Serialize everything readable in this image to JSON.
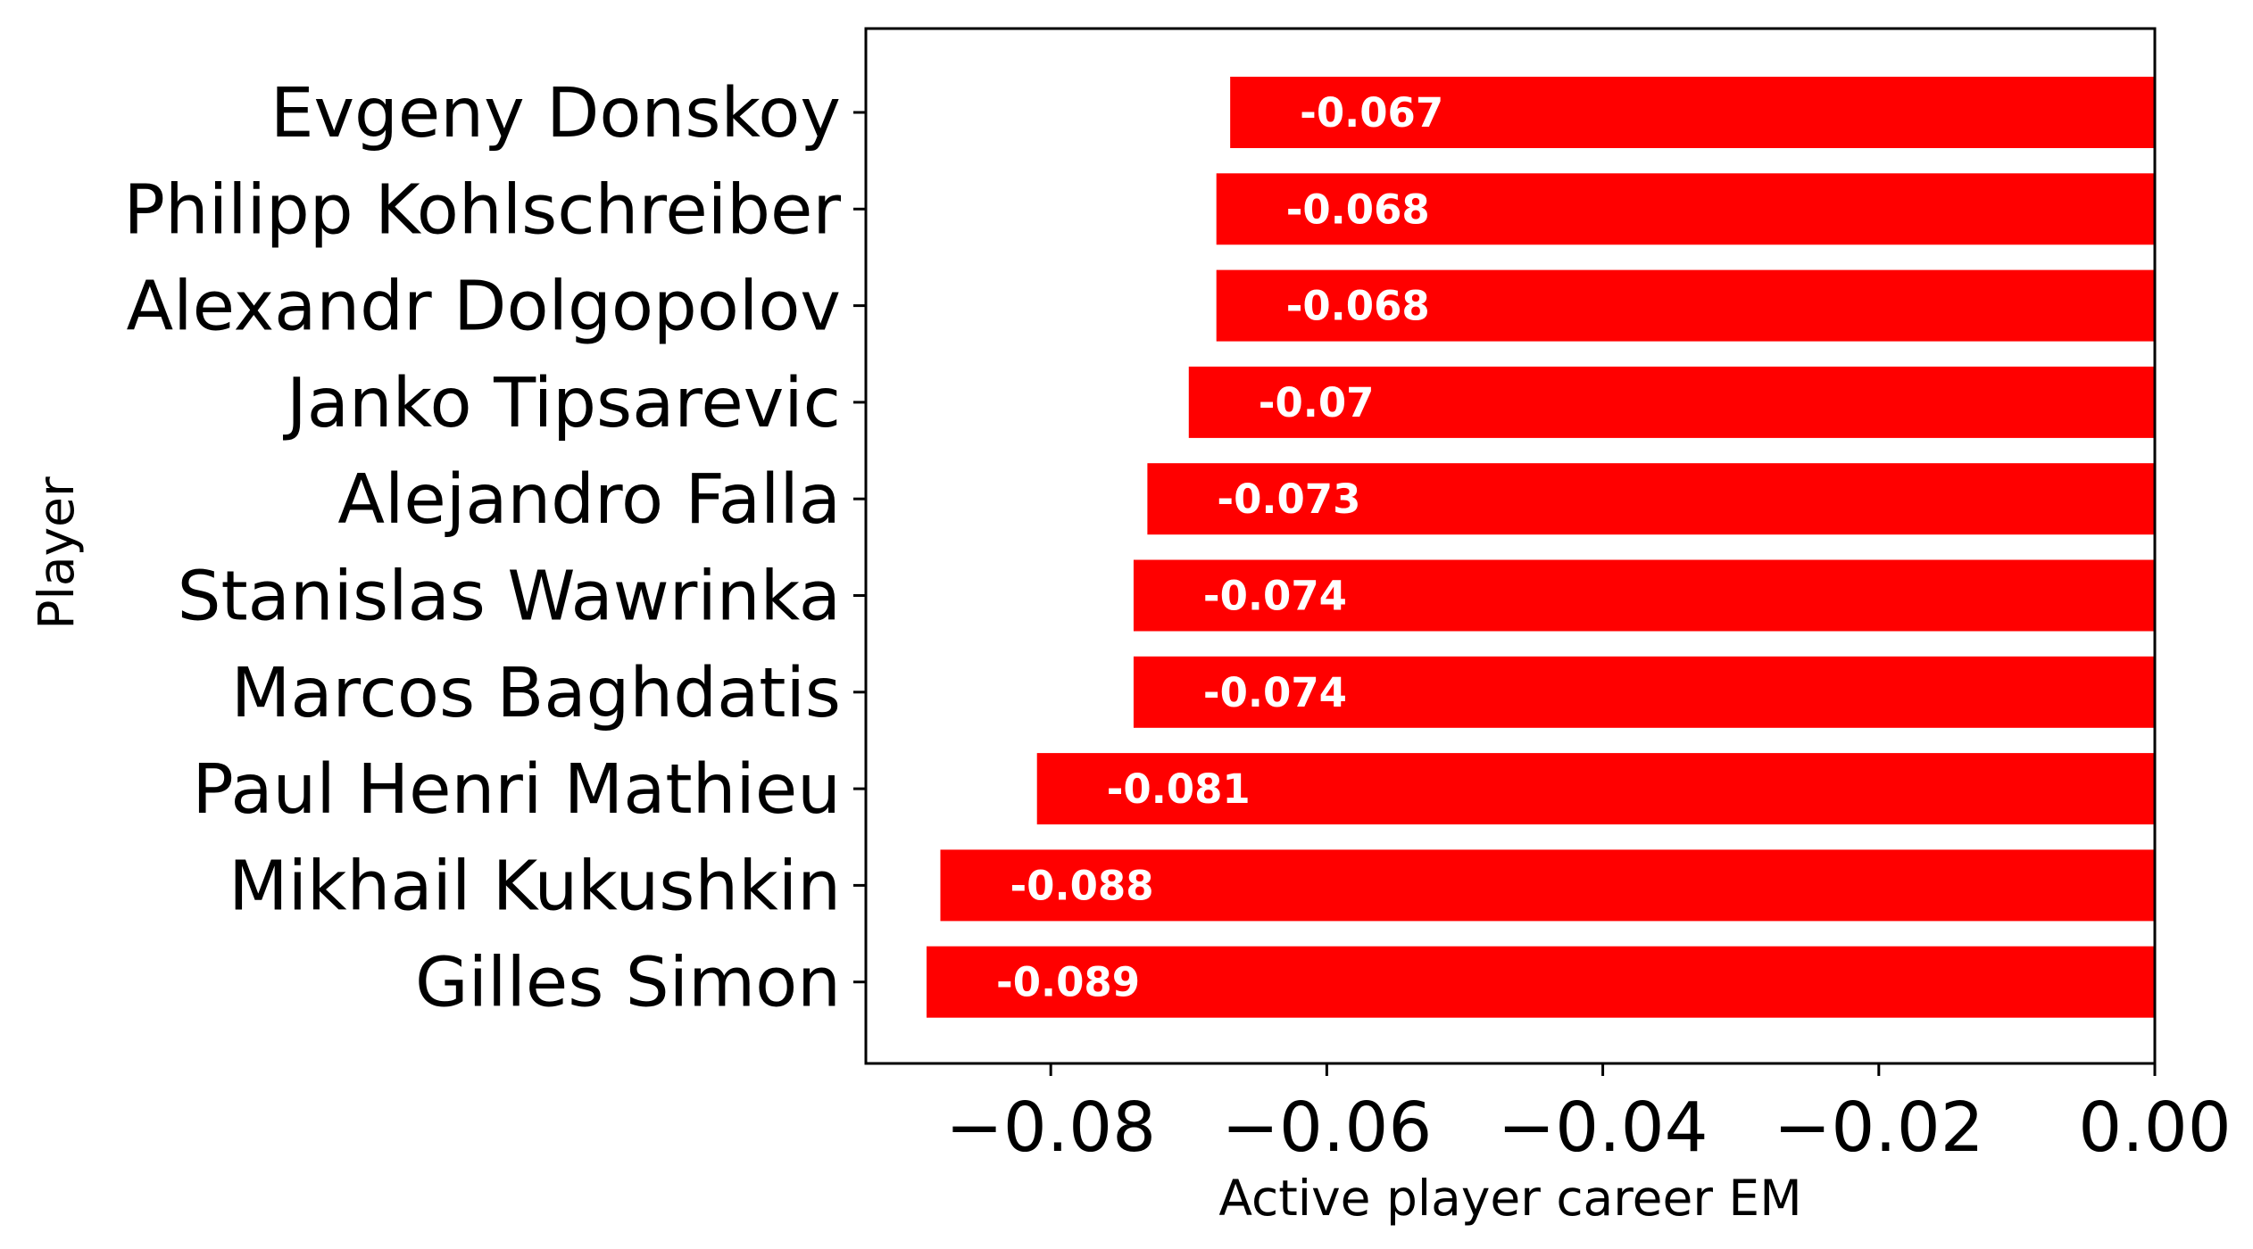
{
  "chart_data": {
    "type": "bar",
    "orientation": "horizontal",
    "categories": [
      "Evgeny Donskoy",
      "Philipp Kohlschreiber",
      "Alexandr Dolgopolov",
      "Janko Tipsarevic",
      "Alejandro Falla",
      "Stanislas Wawrinka",
      "Marcos Baghdatis",
      "Paul Henri Mathieu",
      "Mikhail Kukushkin",
      "Gilles Simon"
    ],
    "values": [
      -0.067,
      -0.068,
      -0.068,
      -0.07,
      -0.073,
      -0.074,
      -0.074,
      -0.081,
      -0.088,
      -0.089
    ],
    "data_labels": [
      "-0.067",
      "-0.068",
      "-0.068",
      "-0.07",
      "-0.073",
      "-0.074",
      "-0.074",
      "-0.081",
      "-0.088",
      "-0.089"
    ],
    "xlabel": "Active player career EM",
    "ylabel": "Player",
    "xlim": [
      -0.0934,
      0.0
    ],
    "xticks": [
      -0.08,
      -0.06,
      -0.04,
      -0.02,
      0.0
    ],
    "xtick_labels": [
      "−0.08",
      "−0.06",
      "−0.04",
      "−0.02",
      "0.00"
    ],
    "bar_color": "#ff0000",
    "label_color": "#ffffff",
    "grid": false,
    "legend": "none"
  }
}
